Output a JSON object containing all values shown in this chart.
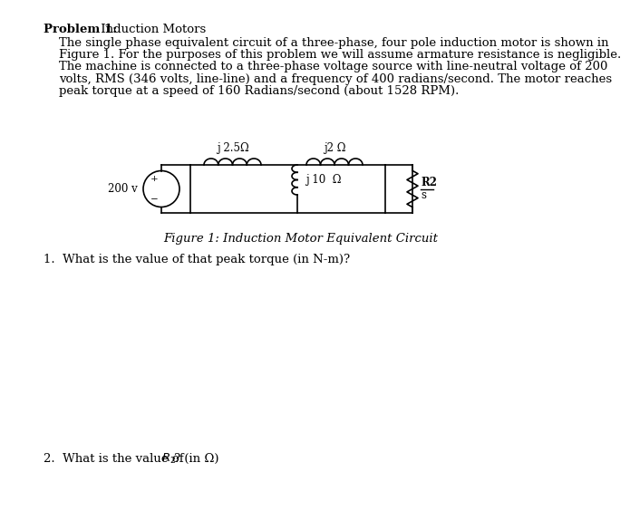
{
  "title_bold": "Problem 1:",
  "title_normal": " Induction Motors",
  "paragraph": "The single phase equivalent circuit of a three-phase, four pole induction motor is shown in\nFigure 1. For the purposes of this problem we will assume armature resistance is negligible.\nThe machine is connected to a three-phase voltage source with line-neutral voltage of 200\nvolts, RMS (346 volts, line-line) and a frequency of 400 radians/second. The motor reaches\npeak torque at a speed of 160 Radians/second (about 1528 RPM).",
  "figure_caption": "Figure 1: Induction Motor Equivalent Circuit",
  "question1": "1.  What is the value of that peak torque (in N-m)?",
  "question2": "2.  What is the value of $R_2$? (in Ω)",
  "bg_color": "#ffffff",
  "text_color": "#000000",
  "font_size_body": 9.5,
  "font_size_title": 9.5,
  "circ_label": "j 2.5Ω",
  "ind2_label": "j2 Ω",
  "shunt_label": "j 10  Ω",
  "volt_label": "200 v",
  "res_label_top": "R2",
  "res_label_bot": "s"
}
